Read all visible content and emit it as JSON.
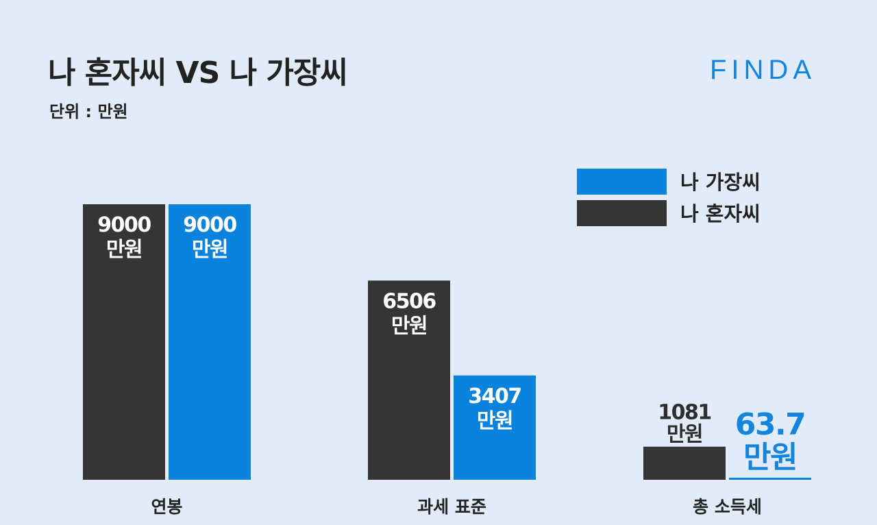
{
  "title": "나 혼자씨 VS 나 가장씨",
  "unit": "단위 : 만원",
  "logo": "FINDA",
  "colors": {
    "dark": "#353535",
    "blue": "#0b83dc",
    "background": "#e1ecf8"
  },
  "chart_data": {
    "type": "bar",
    "title": "나 혼자씨 VS 나 가장씨",
    "categories": [
      "연봉",
      "과세 표준",
      "총 소득세"
    ],
    "series": [
      {
        "name": "나 혼자씨",
        "color": "#353535",
        "values": [
          9000,
          6506,
          1081
        ],
        "value_labels": [
          "9000",
          "6506",
          "1081"
        ]
      },
      {
        "name": "나 가장씨",
        "color": "#0b83dc",
        "values": [
          9000,
          3407,
          63.7
        ],
        "value_labels": [
          "9000",
          "3407",
          "63.7"
        ]
      }
    ],
    "value_suffix": "만원",
    "legend": [
      {
        "name": "나 가장씨",
        "color": "#0b83dc"
      },
      {
        "name": "나 혼자씨",
        "color": "#353535"
      }
    ],
    "legend_position": "top-right",
    "ylim": [
      0,
      9900
    ],
    "xlabel": "",
    "ylabel": ""
  }
}
